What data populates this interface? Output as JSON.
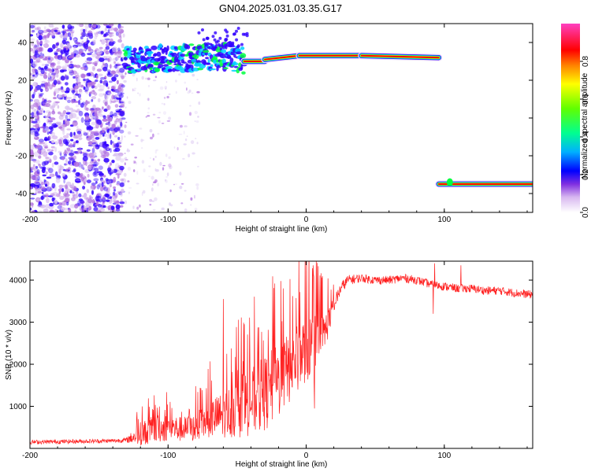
{
  "figure_title": "GN04.2025.031.03.35.G17",
  "chart_data": [
    {
      "type": "heatmap",
      "xlabel": "Height of straight line (km)",
      "ylabel": "Frequency (Hz)",
      "xlim": [
        -200,
        164
      ],
      "ylim": [
        -50,
        50
      ],
      "xticks": [
        -200,
        -100,
        0,
        100
      ],
      "yticks": [
        -40,
        -20,
        0,
        20,
        40
      ],
      "colorbar": {
        "label": "Normalized spectral amplitude",
        "range": [
          0,
          1
        ],
        "ticks": [
          "0.0",
          "0.2",
          "0.4",
          "0.6",
          "0.8"
        ]
      },
      "colors": [
        "#ffffff",
        "#b070e0",
        "#3000ff",
        "#00d0ff",
        "#00ff40",
        "#ffff00",
        "#ff0000",
        "#ff30a0"
      ],
      "bands": [
        {
          "x": [
            -132,
            -90,
            -60,
            -45,
            -20,
            0,
            40,
            70,
            95
          ],
          "freq": [
            30,
            32,
            33,
            30,
            30,
            33,
            33,
            33,
            32
          ]
        },
        {
          "x": [
            96,
            164
          ],
          "freq": [
            -35,
            -35
          ]
        }
      ]
    },
    {
      "type": "line",
      "xlabel": "Height of straight line (km)",
      "ylabel": "SNR (10 * v/v)",
      "xlim": [
        -200,
        164
      ],
      "ylim": [
        0,
        4450
      ],
      "xticks": [
        -200,
        -100,
        0,
        100
      ],
      "yticks": [
        1000,
        2000,
        3000,
        4000
      ],
      "color": "#ff2020",
      "x": [
        -200,
        -180,
        -160,
        -140,
        -130,
        -120,
        -110,
        -100,
        -90,
        -80,
        -70,
        -60,
        -50,
        -45,
        -40,
        -30,
        -20,
        -10,
        -5,
        0,
        5,
        10,
        15,
        20,
        25,
        30,
        40,
        50,
        60,
        70,
        80,
        90,
        100,
        110,
        120,
        130,
        140,
        150,
        164
      ],
      "y": [
        150,
        160,
        170,
        180,
        200,
        350,
        450,
        500,
        450,
        500,
        700,
        800,
        950,
        1050,
        1100,
        1300,
        1600,
        2000,
        2150,
        2400,
        2350,
        2500,
        2900,
        3400,
        3800,
        4000,
        4050,
        4000,
        4000,
        4050,
        4000,
        3900,
        3850,
        3800,
        3800,
        3750,
        3750,
        3700,
        3650
      ],
      "noise_amp": [
        50,
        50,
        50,
        50,
        60,
        280,
        330,
        330,
        300,
        330,
        450,
        550,
        700,
        780,
        800,
        900,
        900,
        850,
        800,
        800,
        900,
        600,
        400,
        200,
        150,
        120,
        100,
        100,
        100,
        100,
        100,
        100,
        100,
        100,
        100,
        100,
        100,
        100,
        100
      ],
      "spikes": [
        {
          "x": -60,
          "y": 3550
        },
        {
          "x": 5,
          "y": 4350
        },
        {
          "x": 6,
          "y": 950
        },
        {
          "x": 93,
          "y": 4400
        },
        {
          "x": 92,
          "y": 3200
        },
        {
          "x": 112,
          "y": 4350
        }
      ]
    }
  ]
}
